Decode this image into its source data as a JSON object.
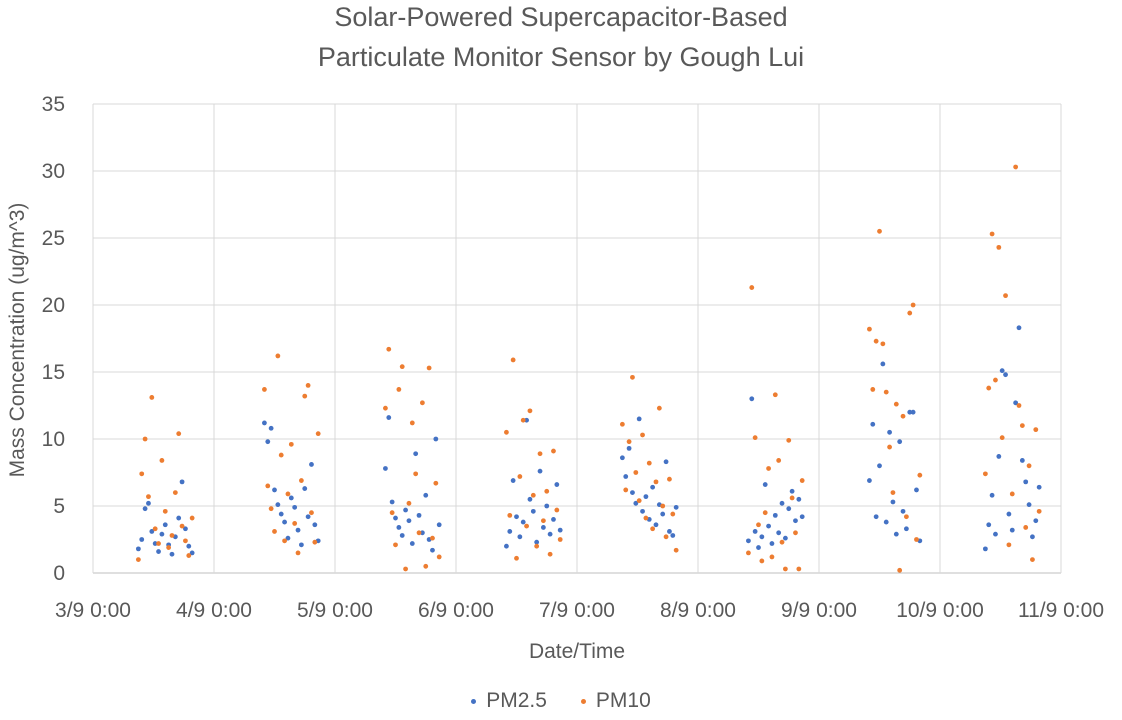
{
  "chart_data": {
    "type": "scatter",
    "title_lines": [
      "Solar-Powered Supercapacitor-Based",
      "Particulate Monitor Sensor by Gough Lui"
    ],
    "xlabel": "Date/Time",
    "ylabel": "Mass Concentration (ug/m^3)",
    "x_ticks": [
      "3/9 0:00",
      "4/9 0:00",
      "5/9 0:00",
      "6/9 0:00",
      "7/9 0:00",
      "8/9 0:00",
      "9/9 0:00",
      "10/9 0:00",
      "11/9 0:00"
    ],
    "ylim": [
      0,
      35
    ],
    "y_ticks": [
      0,
      5,
      10,
      15,
      20,
      25,
      30,
      35
    ],
    "grid": true,
    "legend_position": "bottom",
    "series": [
      {
        "name": "PM2.5",
        "color": "#4472C4",
        "points": [
          [
            "3/9 9:00",
            1.8
          ],
          [
            "3/9 9:40",
            2.5
          ],
          [
            "3/9 10:20",
            4.8
          ],
          [
            "3/9 11:00",
            5.2
          ],
          [
            "3/9 11:40",
            3.1
          ],
          [
            "3/9 12:20",
            2.2
          ],
          [
            "3/9 13:00",
            1.6
          ],
          [
            "3/9 13:40",
            2.9
          ],
          [
            "3/9 14:20",
            3.6
          ],
          [
            "3/9 15:00",
            2.1
          ],
          [
            "3/9 15:40",
            1.4
          ],
          [
            "3/9 16:20",
            2.7
          ],
          [
            "3/9 17:00",
            4.1
          ],
          [
            "3/9 17:40",
            6.8
          ],
          [
            "3/9 18:20",
            3.3
          ],
          [
            "3/9 19:00",
            2.0
          ],
          [
            "3/9 19:40",
            1.5
          ],
          [
            "4/9 10:00",
            11.2
          ],
          [
            "4/9 10:40",
            9.8
          ],
          [
            "4/9 11:20",
            10.8
          ],
          [
            "4/9 12:00",
            6.2
          ],
          [
            "4/9 12:40",
            5.1
          ],
          [
            "4/9 13:20",
            4.4
          ],
          [
            "4/9 14:00",
            3.8
          ],
          [
            "4/9 14:40",
            2.6
          ],
          [
            "4/9 15:20",
            5.6
          ],
          [
            "4/9 16:00",
            4.9
          ],
          [
            "4/9 16:40",
            3.2
          ],
          [
            "4/9 17:20",
            2.1
          ],
          [
            "4/9 18:00",
            6.3
          ],
          [
            "4/9 18:40",
            4.2
          ],
          [
            "4/9 19:20",
            8.1
          ],
          [
            "4/9 20:00",
            3.6
          ],
          [
            "4/9 20:40",
            2.4
          ],
          [
            "5/9 10:00",
            7.8
          ],
          [
            "5/9 10:40",
            11.6
          ],
          [
            "5/9 11:20",
            5.3
          ],
          [
            "5/9 12:00",
            4.1
          ],
          [
            "5/9 12:40",
            3.4
          ],
          [
            "5/9 13:20",
            2.8
          ],
          [
            "5/9 14:00",
            4.7
          ],
          [
            "5/9 14:40",
            3.9
          ],
          [
            "5/9 15:20",
            2.2
          ],
          [
            "5/9 16:00",
            8.9
          ],
          [
            "5/9 16:40",
            4.3
          ],
          [
            "5/9 17:20",
            3.0
          ],
          [
            "5/9 18:00",
            5.8
          ],
          [
            "5/9 18:40",
            2.5
          ],
          [
            "5/9 19:20",
            1.7
          ],
          [
            "5/9 20:00",
            10.0
          ],
          [
            "5/9 20:40",
            3.6
          ],
          [
            "6/9 10:00",
            2.0
          ],
          [
            "6/9 10:40",
            3.1
          ],
          [
            "6/9 11:20",
            6.9
          ],
          [
            "6/9 12:00",
            4.2
          ],
          [
            "6/9 12:40",
            2.7
          ],
          [
            "6/9 13:20",
            3.8
          ],
          [
            "6/9 14:00",
            11.4
          ],
          [
            "6/9 14:40",
            5.5
          ],
          [
            "6/9 15:20",
            4.6
          ],
          [
            "6/9 16:00",
            2.3
          ],
          [
            "6/9 16:40",
            7.6
          ],
          [
            "6/9 17:20",
            3.4
          ],
          [
            "6/9 18:00",
            5.0
          ],
          [
            "6/9 18:40",
            2.9
          ],
          [
            "6/9 19:20",
            4.0
          ],
          [
            "6/9 20:00",
            6.6
          ],
          [
            "6/9 20:40",
            3.2
          ],
          [
            "7/9 9:00",
            8.6
          ],
          [
            "7/9 9:40",
            7.2
          ],
          [
            "7/9 10:20",
            9.3
          ],
          [
            "7/9 11:00",
            6.0
          ],
          [
            "7/9 11:40",
            5.2
          ],
          [
            "7/9 12:20",
            11.5
          ],
          [
            "7/9 13:00",
            4.6
          ],
          [
            "7/9 13:40",
            5.7
          ],
          [
            "7/9 14:20",
            4.0
          ],
          [
            "7/9 15:00",
            6.4
          ],
          [
            "7/9 15:40",
            3.6
          ],
          [
            "7/9 16:20",
            5.1
          ],
          [
            "7/9 17:00",
            4.4
          ],
          [
            "7/9 17:40",
            8.3
          ],
          [
            "7/9 18:20",
            3.1
          ],
          [
            "7/9 19:00",
            2.8
          ],
          [
            "7/9 19:40",
            4.9
          ],
          [
            "8/9 10:00",
            2.4
          ],
          [
            "8/9 10:40",
            13.0
          ],
          [
            "8/9 11:20",
            3.1
          ],
          [
            "8/9 12:00",
            1.9
          ],
          [
            "8/9 12:40",
            2.7
          ],
          [
            "8/9 13:20",
            6.6
          ],
          [
            "8/9 14:00",
            3.5
          ],
          [
            "8/9 14:40",
            2.2
          ],
          [
            "8/9 15:20",
            4.3
          ],
          [
            "8/9 16:00",
            3.0
          ],
          [
            "8/9 16:40",
            5.2
          ],
          [
            "8/9 17:20",
            2.6
          ],
          [
            "8/9 18:00",
            4.8
          ],
          [
            "8/9 18:40",
            6.1
          ],
          [
            "8/9 19:20",
            3.9
          ],
          [
            "8/9 20:00",
            5.5
          ],
          [
            "8/9 20:40",
            4.2
          ],
          [
            "9/9 10:00",
            6.9
          ],
          [
            "9/9 10:40",
            11.1
          ],
          [
            "9/9 11:20",
            4.2
          ],
          [
            "9/9 12:00",
            8.0
          ],
          [
            "9/9 12:40",
            15.6
          ],
          [
            "9/9 13:20",
            3.8
          ],
          [
            "9/9 14:00",
            10.5
          ],
          [
            "9/9 14:40",
            5.3
          ],
          [
            "9/9 15:20",
            2.9
          ],
          [
            "9/9 16:00",
            9.8
          ],
          [
            "9/9 16:40",
            4.6
          ],
          [
            "9/9 17:20",
            3.3
          ],
          [
            "9/9 18:00",
            12.0
          ],
          [
            "9/9 18:40",
            12.0
          ],
          [
            "9/9 19:20",
            6.2
          ],
          [
            "9/9 20:00",
            2.4
          ],
          [
            "10/9 9:00",
            1.8
          ],
          [
            "10/9 9:40",
            3.6
          ],
          [
            "10/9 10:20",
            5.8
          ],
          [
            "10/9 11:00",
            2.9
          ],
          [
            "10/9 11:40",
            8.7
          ],
          [
            "10/9 12:20",
            15.1
          ],
          [
            "10/9 13:00",
            14.8
          ],
          [
            "10/9 13:40",
            4.4
          ],
          [
            "10/9 14:20",
            3.2
          ],
          [
            "10/9 15:00",
            12.7
          ],
          [
            "10/9 15:40",
            18.3
          ],
          [
            "10/9 16:20",
            8.4
          ],
          [
            "10/9 17:00",
            6.8
          ],
          [
            "10/9 17:40",
            5.1
          ],
          [
            "10/9 18:20",
            2.7
          ],
          [
            "10/9 19:00",
            3.9
          ],
          [
            "10/9 19:40",
            6.4
          ]
        ]
      },
      {
        "name": "PM10",
        "color": "#ED7D31",
        "points": [
          [
            "3/9 9:00",
            1.0
          ],
          [
            "3/9 9:40",
            7.4
          ],
          [
            "3/9 10:20",
            10.0
          ],
          [
            "3/9 11:00",
            5.7
          ],
          [
            "3/9 11:40",
            13.1
          ],
          [
            "3/9 12:20",
            3.3
          ],
          [
            "3/9 13:00",
            2.2
          ],
          [
            "3/9 13:40",
            8.4
          ],
          [
            "3/9 14:20",
            4.6
          ],
          [
            "3/9 15:00",
            1.9
          ],
          [
            "3/9 15:40",
            2.8
          ],
          [
            "3/9 16:20",
            6.0
          ],
          [
            "3/9 17:00",
            10.4
          ],
          [
            "3/9 17:40",
            3.5
          ],
          [
            "3/9 18:20",
            2.4
          ],
          [
            "3/9 19:00",
            1.3
          ],
          [
            "3/9 19:40",
            4.1
          ],
          [
            "4/9 10:00",
            13.7
          ],
          [
            "4/9 10:40",
            6.5
          ],
          [
            "4/9 11:20",
            4.8
          ],
          [
            "4/9 12:00",
            3.1
          ],
          [
            "4/9 12:40",
            16.2
          ],
          [
            "4/9 13:20",
            8.8
          ],
          [
            "4/9 14:00",
            2.4
          ],
          [
            "4/9 14:40",
            5.9
          ],
          [
            "4/9 15:20",
            9.6
          ],
          [
            "4/9 16:00",
            3.7
          ],
          [
            "4/9 16:40",
            1.5
          ],
          [
            "4/9 17:20",
            6.9
          ],
          [
            "4/9 18:00",
            13.2
          ],
          [
            "4/9 18:40",
            14.0
          ],
          [
            "4/9 19:20",
            4.5
          ],
          [
            "4/9 20:00",
            2.3
          ],
          [
            "4/9 20:40",
            10.4
          ],
          [
            "5/9 10:00",
            12.3
          ],
          [
            "5/9 10:40",
            16.7
          ],
          [
            "5/9 11:20",
            4.5
          ],
          [
            "5/9 12:00",
            2.1
          ],
          [
            "5/9 12:40",
            13.7
          ],
          [
            "5/9 13:20",
            15.4
          ],
          [
            "5/9 14:00",
            0.3
          ],
          [
            "5/9 14:40",
            5.2
          ],
          [
            "5/9 15:20",
            11.2
          ],
          [
            "5/9 16:00",
            7.4
          ],
          [
            "5/9 16:40",
            3.0
          ],
          [
            "5/9 17:20",
            12.7
          ],
          [
            "5/9 18:00",
            0.5
          ],
          [
            "5/9 18:40",
            15.3
          ],
          [
            "5/9 19:20",
            2.6
          ],
          [
            "5/9 20:00",
            6.7
          ],
          [
            "5/9 20:40",
            1.2
          ],
          [
            "6/9 10:00",
            10.5
          ],
          [
            "6/9 10:40",
            4.3
          ],
          [
            "6/9 11:20",
            15.9
          ],
          [
            "6/9 12:00",
            1.1
          ],
          [
            "6/9 12:40",
            7.2
          ],
          [
            "6/9 13:20",
            11.4
          ],
          [
            "6/9 14:00",
            3.5
          ],
          [
            "6/9 14:40",
            12.1
          ],
          [
            "6/9 15:20",
            5.8
          ],
          [
            "6/9 16:00",
            2.0
          ],
          [
            "6/9 16:40",
            8.9
          ],
          [
            "6/9 17:20",
            3.9
          ],
          [
            "6/9 18:00",
            6.1
          ],
          [
            "6/9 18:40",
            1.4
          ],
          [
            "6/9 19:20",
            9.1
          ],
          [
            "6/9 20:00",
            4.7
          ],
          [
            "6/9 20:40",
            2.5
          ],
          [
            "7/9 9:00",
            11.1
          ],
          [
            "7/9 9:40",
            6.2
          ],
          [
            "7/9 10:20",
            9.8
          ],
          [
            "7/9 11:00",
            14.6
          ],
          [
            "7/9 11:40",
            7.5
          ],
          [
            "7/9 12:20",
            5.4
          ],
          [
            "7/9 13:00",
            10.3
          ],
          [
            "7/9 13:40",
            4.1
          ],
          [
            "7/9 14:20",
            8.2
          ],
          [
            "7/9 15:00",
            3.3
          ],
          [
            "7/9 15:40",
            6.8
          ],
          [
            "7/9 16:20",
            12.3
          ],
          [
            "7/9 17:00",
            5.0
          ],
          [
            "7/9 17:40",
            2.7
          ],
          [
            "7/9 18:20",
            7.0
          ],
          [
            "7/9 19:00",
            4.4
          ],
          [
            "7/9 19:40",
            1.7
          ],
          [
            "8/9 10:00",
            1.5
          ],
          [
            "8/9 10:40",
            21.3
          ],
          [
            "8/9 11:20",
            10.1
          ],
          [
            "8/9 12:00",
            3.6
          ],
          [
            "8/9 12:40",
            0.9
          ],
          [
            "8/9 13:20",
            4.5
          ],
          [
            "8/9 14:00",
            7.8
          ],
          [
            "8/9 14:40",
            1.2
          ],
          [
            "8/9 15:20",
            13.3
          ],
          [
            "8/9 16:00",
            8.4
          ],
          [
            "8/9 16:40",
            2.3
          ],
          [
            "8/9 17:20",
            0.3
          ],
          [
            "8/9 18:00",
            9.9
          ],
          [
            "8/9 18:40",
            5.6
          ],
          [
            "8/9 19:20",
            3.0
          ],
          [
            "8/9 20:00",
            0.3
          ],
          [
            "8/9 20:40",
            6.9
          ],
          [
            "9/9 10:00",
            18.2
          ],
          [
            "9/9 10:40",
            13.7
          ],
          [
            "9/9 11:20",
            17.3
          ],
          [
            "9/9 12:00",
            25.5
          ],
          [
            "9/9 12:40",
            17.1
          ],
          [
            "9/9 13:20",
            13.5
          ],
          [
            "9/9 14:00",
            9.4
          ],
          [
            "9/9 14:40",
            6.0
          ],
          [
            "9/9 15:20",
            12.6
          ],
          [
            "9/9 16:00",
            0.2
          ],
          [
            "9/9 16:40",
            11.7
          ],
          [
            "9/9 17:20",
            4.2
          ],
          [
            "9/9 18:00",
            19.4
          ],
          [
            "9/9 18:40",
            20.0
          ],
          [
            "9/9 19:20",
            2.5
          ],
          [
            "9/9 20:00",
            7.3
          ],
          [
            "10/9 9:00",
            7.4
          ],
          [
            "10/9 9:40",
            13.8
          ],
          [
            "10/9 10:20",
            25.3
          ],
          [
            "10/9 11:00",
            14.4
          ],
          [
            "10/9 11:40",
            24.3
          ],
          [
            "10/9 12:20",
            10.1
          ],
          [
            "10/9 13:00",
            20.7
          ],
          [
            "10/9 13:40",
            2.1
          ],
          [
            "10/9 14:20",
            5.9
          ],
          [
            "10/9 15:00",
            30.3
          ],
          [
            "10/9 15:40",
            12.5
          ],
          [
            "10/9 16:20",
            11.0
          ],
          [
            "10/9 17:00",
            3.4
          ],
          [
            "10/9 17:40",
            8.0
          ],
          [
            "10/9 18:20",
            1.0
          ],
          [
            "10/9 19:00",
            10.7
          ],
          [
            "10/9 19:40",
            4.6
          ]
        ]
      }
    ]
  }
}
